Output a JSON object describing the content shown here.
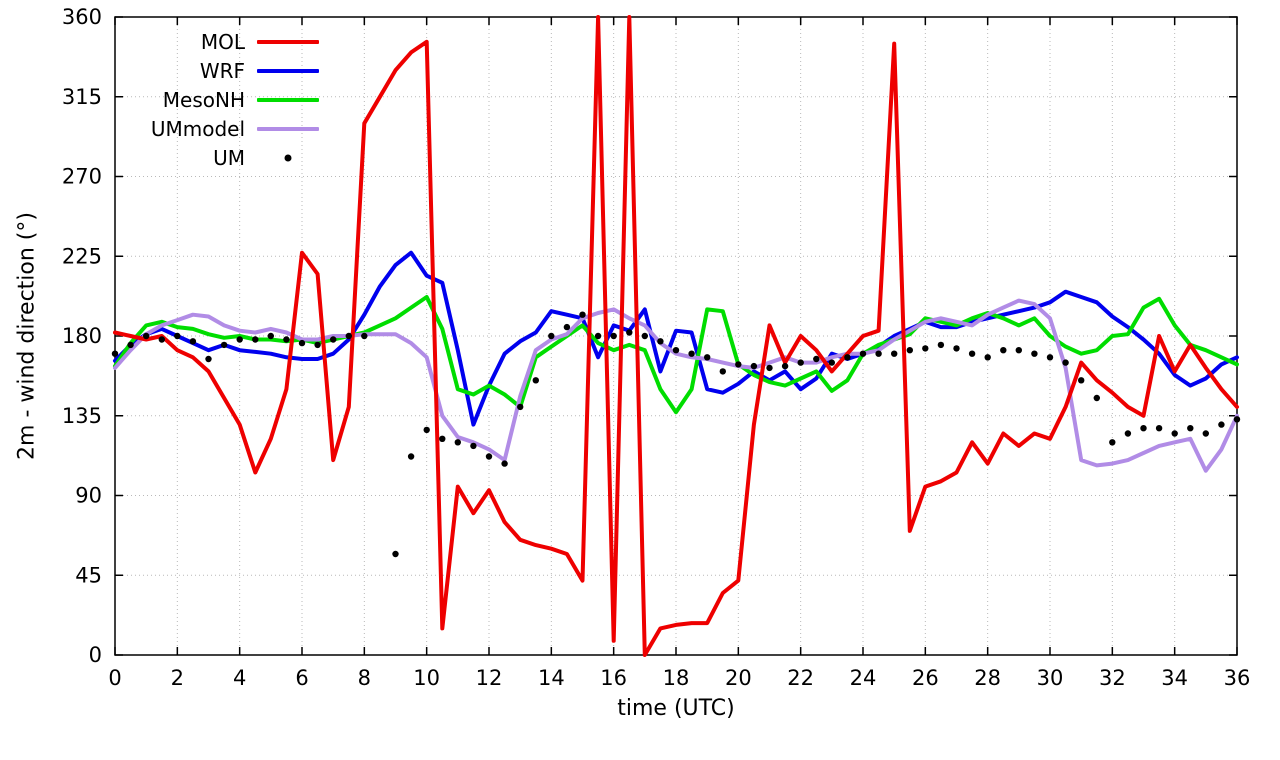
{
  "chart_data": {
    "type": "line",
    "title": "",
    "xlabel": "time (UTC)",
    "ylabel": "2m - wind direction (°)",
    "xlim": [
      0,
      36
    ],
    "ylim": [
      0,
      360
    ],
    "xticks": [
      0,
      2,
      4,
      6,
      8,
      10,
      12,
      14,
      16,
      18,
      20,
      22,
      24,
      26,
      28,
      30,
      32,
      34,
      36
    ],
    "yticks": [
      0,
      45,
      90,
      135,
      180,
      225,
      270,
      315,
      360
    ],
    "grid": true,
    "legend_position": "top-left-inside",
    "draw_order": [
      1,
      2,
      3,
      0,
      4
    ],
    "x": [
      0,
      0.5,
      1,
      1.5,
      2,
      2.5,
      3,
      3.5,
      4,
      4.5,
      5,
      5.5,
      6,
      6.5,
      7,
      7.5,
      8,
      8.5,
      9,
      9.5,
      10,
      10.5,
      11,
      11.5,
      12,
      12.5,
      13,
      13.5,
      14,
      14.5,
      15,
      15.5,
      16,
      16.5,
      17,
      17.5,
      18,
      18.5,
      19,
      19.5,
      20,
      20.5,
      21,
      21.5,
      22,
      22.5,
      23,
      23.5,
      24,
      24.5,
      25,
      25.5,
      26,
      26.5,
      27,
      27.5,
      28,
      28.5,
      29,
      29.5,
      30,
      30.5,
      31,
      31.5,
      32,
      32.5,
      33,
      33.5,
      34,
      34.5,
      35,
      35.5,
      36
    ],
    "series": [
      {
        "name": "MOL",
        "type": "line",
        "color": "#ee0000",
        "width": 4,
        "y": [
          182,
          180,
          178,
          180,
          172,
          168,
          160,
          145,
          130,
          103,
          122,
          150,
          227,
          215,
          110,
          140,
          300,
          315,
          330,
          340,
          346,
          15,
          95,
          80,
          93,
          75,
          65,
          62,
          60,
          57,
          42,
          360,
          8,
          360,
          0,
          15,
          17,
          18,
          18,
          35,
          42,
          130,
          186,
          165,
          180,
          172,
          160,
          170,
          180,
          183,
          345,
          70,
          95,
          98,
          103,
          120,
          108,
          125,
          118,
          125,
          122,
          140,
          165,
          155,
          148,
          140,
          135,
          180,
          160,
          175,
          162,
          150,
          140
        ]
      },
      {
        "name": "WRF",
        "type": "line",
        "color": "#0000ee",
        "width": 4,
        "y": [
          166,
          175,
          181,
          184,
          180,
          176,
          172,
          175,
          172,
          171,
          170,
          168,
          167,
          167,
          170,
          178,
          192,
          208,
          220,
          227,
          214,
          210,
          172,
          130,
          152,
          170,
          177,
          182,
          194,
          192,
          190,
          168,
          186,
          183,
          195,
          160,
          183,
          182,
          150,
          148,
          153,
          160,
          155,
          160,
          150,
          156,
          170,
          167,
          170,
          174,
          180,
          184,
          188,
          185,
          185,
          188,
          190,
          192,
          194,
          196,
          199,
          205,
          202,
          199,
          191,
          185,
          178,
          170,
          158,
          152,
          156,
          164,
          168
        ]
      },
      {
        "name": "MesoNH",
        "type": "line",
        "color": "#00dd00",
        "width": 4,
        "y": [
          163,
          176,
          186,
          188,
          185,
          184,
          181,
          179,
          180,
          178,
          178,
          177,
          178,
          176,
          178,
          180,
          182,
          186,
          190,
          196,
          202,
          184,
          150,
          147,
          152,
          147,
          140,
          168,
          174,
          180,
          186,
          176,
          172,
          175,
          172,
          150,
          137,
          150,
          195,
          194,
          164,
          158,
          154,
          152,
          156,
          160,
          149,
          155,
          170,
          175,
          178,
          181,
          190,
          188,
          186,
          190,
          193,
          190,
          186,
          190,
          180,
          174,
          170,
          172,
          180,
          181,
          196,
          201,
          186,
          175,
          172,
          168,
          164
        ]
      },
      {
        "name": "UMmodel",
        "type": "line",
        "color": "#b18ce6",
        "width": 4,
        "y": [
          162,
          172,
          181,
          186,
          189,
          192,
          191,
          186,
          183,
          182,
          184,
          182,
          178,
          178,
          180,
          180,
          181,
          181,
          181,
          176,
          168,
          135,
          123,
          120,
          116,
          110,
          146,
          172,
          178,
          181,
          190,
          193,
          195,
          190,
          186,
          176,
          170,
          168,
          167,
          165,
          163,
          162,
          165,
          168,
          165,
          165,
          168,
          170,
          170,
          172,
          178,
          183,
          188,
          190,
          188,
          186,
          192,
          196,
          200,
          198,
          190,
          162,
          110,
          107,
          108,
          110,
          114,
          118,
          120,
          122,
          104,
          116,
          135
        ]
      },
      {
        "name": "UM",
        "type": "scatter",
        "color": "#000000",
        "marker": "dot",
        "y": [
          170,
          175,
          180,
          178,
          180,
          177,
          167,
          175,
          178,
          178,
          180,
          178,
          176,
          175,
          178,
          180,
          180,
          null,
          57,
          112,
          127,
          122,
          120,
          118,
          112,
          108,
          140,
          155,
          180,
          185,
          192,
          180,
          180,
          182,
          180,
          177,
          172,
          170,
          168,
          160,
          164,
          163,
          162,
          163,
          165,
          167,
          165,
          168,
          170,
          170,
          170,
          172,
          173,
          175,
          173,
          170,
          168,
          172,
          172,
          170,
          168,
          165,
          155,
          145,
          120,
          125,
          128,
          128,
          125,
          128,
          125,
          130,
          133
        ]
      }
    ]
  }
}
